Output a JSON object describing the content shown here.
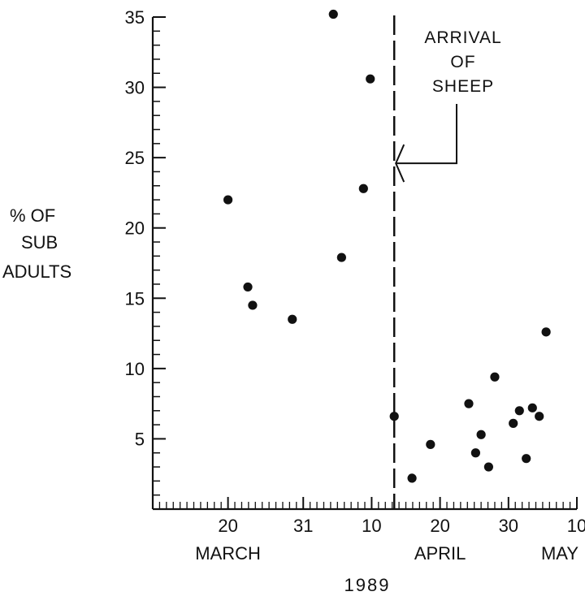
{
  "chart_data": {
    "type": "scatter",
    "title": "",
    "xlabel": "1989",
    "ylabel": [
      "% OF",
      "SUB",
      "ADULTS"
    ],
    "x_unit": "days from 1 March 1989",
    "xlim": [
      9,
      71
    ],
    "ylim": [
      0,
      35
    ],
    "grid": false,
    "yticks": [
      5,
      10,
      15,
      20,
      25,
      30,
      35
    ],
    "xticks": [
      {
        "value": 20,
        "label": "20"
      },
      {
        "value": 31,
        "label": "31"
      },
      {
        "value": 41,
        "label": "10"
      },
      {
        "value": 51,
        "label": "20"
      },
      {
        "value": 61,
        "label": "30"
      },
      {
        "value": 71,
        "label": "10"
      }
    ],
    "months": [
      {
        "value": 20,
        "label": "MARCH"
      },
      {
        "value": 51,
        "label": "APRIL"
      },
      {
        "value": 71,
        "label": "MAY"
      }
    ],
    "series": [
      {
        "points": [
          {
            "x": 20.0,
            "y": 22.0
          },
          {
            "x": 22.9,
            "y": 15.8
          },
          {
            "x": 23.6,
            "y": 14.5
          },
          {
            "x": 29.4,
            "y": 13.5
          },
          {
            "x": 35.4,
            "y": 35.2
          },
          {
            "x": 36.6,
            "y": 17.9
          },
          {
            "x": 39.8,
            "y": 22.8
          },
          {
            "x": 40.8,
            "y": 30.6
          },
          {
            "x": 44.3,
            "y": 6.6
          },
          {
            "x": 46.9,
            "y": 2.2
          },
          {
            "x": 49.6,
            "y": 4.6
          },
          {
            "x": 55.2,
            "y": 7.5
          },
          {
            "x": 56.2,
            "y": 4.0
          },
          {
            "x": 57.0,
            "y": 5.3
          },
          {
            "x": 58.1,
            "y": 3.0
          },
          {
            "x": 59.0,
            "y": 9.4
          },
          {
            "x": 61.7,
            "y": 6.1
          },
          {
            "x": 62.6,
            "y": 7.0
          },
          {
            "x": 63.6,
            "y": 3.6
          },
          {
            "x": 64.5,
            "y": 7.2
          },
          {
            "x": 65.5,
            "y": 6.6
          },
          {
            "x": 66.5,
            "y": 12.6
          }
        ]
      }
    ],
    "event_line": {
      "x": 44.3,
      "label": [
        "ARRIVAL",
        "OF",
        "SHEEP"
      ],
      "y_arrow": 24.6
    }
  }
}
